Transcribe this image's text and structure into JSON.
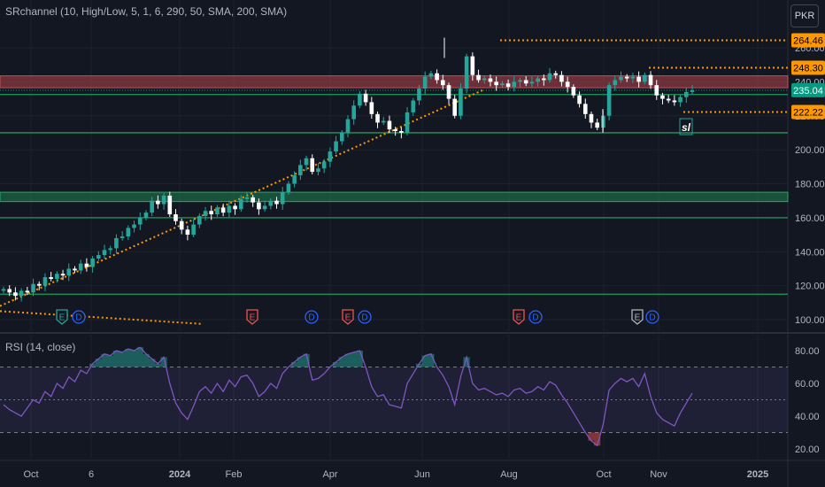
{
  "indicator_label": "SRchannel (10, High/Low, 5, 1, 6, 290, 50, SMA, 200, SMA)",
  "rsi_label": "RSI (14, close)",
  "currency": "PKR",
  "colors": {
    "background": "#131722",
    "up": "#26a69a",
    "down": "#ffffff",
    "resistance_zone": "#b2434b",
    "support_line": "#1e9c5a",
    "dotted": "#ff9800",
    "rsi_line": "#7e57c2",
    "price_label": "#ff9800",
    "current_label": "#089981"
  },
  "chart_data": [
    {
      "type": "candlestick",
      "y_axis_ticks": [
        100,
        120,
        140,
        160,
        180,
        200,
        220,
        240,
        260
      ],
      "y_tick_labels": [
        "100.00",
        "120.00",
        "140.00",
        "160.00",
        "180.00",
        "200.00",
        "220.00",
        "240.00",
        "260.00"
      ],
      "ylim": [
        97,
        272
      ],
      "x_tick_labels": [
        "Oct",
        "6",
        "2024",
        "Feb",
        "Apr",
        "Jun",
        "Aug",
        "Oct",
        "Nov",
        "2025"
      ],
      "price_labels": [
        "264.46",
        "248.30",
        "235.04",
        "222.22"
      ],
      "levels": {
        "dotted": [
          264.46,
          248.3,
          222.22
        ],
        "current": 235.04
      },
      "resistance_zone": [
        236.5,
        243.5
      ],
      "support_zone": [
        169.5,
        175
      ],
      "support_lines": [
        232.5,
        210,
        160,
        115
      ],
      "annotation": "sl",
      "event_markers": [
        "E",
        "D",
        "E",
        "D",
        "E",
        "D",
        "E",
        "D",
        "E",
        "D"
      ],
      "close": [
        118,
        116,
        114,
        117,
        116,
        121,
        120,
        125,
        124,
        127,
        126,
        130,
        129,
        133,
        131,
        136,
        138,
        141,
        142,
        148,
        149,
        154,
        156,
        160,
        163,
        170,
        168,
        173,
        162,
        158,
        153,
        150,
        156,
        161,
        164,
        162,
        166,
        163,
        167,
        165,
        171,
        172,
        169,
        165,
        167,
        170,
        168,
        175,
        180,
        185,
        191,
        195,
        187,
        189,
        193,
        199,
        205,
        210,
        218,
        226,
        233,
        228,
        221,
        216,
        217,
        212,
        211,
        210,
        222,
        229,
        236,
        243,
        245,
        241,
        238,
        230,
        220,
        236,
        255,
        244,
        241,
        242,
        240,
        238,
        239,
        237,
        240,
        241,
        239,
        240,
        242,
        241,
        245,
        244,
        240,
        237,
        232,
        227,
        221,
        216,
        213,
        220,
        238,
        241,
        243,
        242,
        243,
        240,
        244,
        238,
        232,
        230,
        229,
        228,
        231,
        234,
        235
      ],
      "rsi": {
        "ylim": [
          18,
          84
        ],
        "ticks": [
          20,
          40,
          60,
          80
        ],
        "tick_labels": [
          "20.00",
          "40.00",
          "60.00",
          "80.00"
        ],
        "bands": [
          30,
          50,
          70
        ],
        "values": [
          47,
          44,
          42,
          40,
          45,
          50,
          48,
          55,
          52,
          60,
          57,
          64,
          61,
          68,
          66,
          72,
          75,
          78,
          77,
          80,
          79,
          81,
          80,
          82,
          78,
          75,
          72,
          76,
          60,
          48,
          42,
          38,
          46,
          55,
          58,
          54,
          60,
          55,
          62,
          58,
          64,
          65,
          60,
          52,
          55,
          60,
          57,
          66,
          70,
          73,
          76,
          78,
          62,
          63,
          66,
          70,
          73,
          76,
          78,
          79,
          80,
          70,
          58,
          52,
          53,
          47,
          46,
          45,
          60,
          66,
          72,
          77,
          78,
          70,
          65,
          58,
          47,
          64,
          76,
          60,
          56,
          57,
          55,
          53,
          54,
          52,
          56,
          57,
          54,
          55,
          58,
          56,
          61,
          59,
          53,
          48,
          42,
          36,
          30,
          25,
          22,
          35,
          56,
          60,
          63,
          61,
          63,
          58,
          66,
          52,
          42,
          38,
          36,
          34,
          42,
          48,
          54
        ]
      }
    }
  ]
}
